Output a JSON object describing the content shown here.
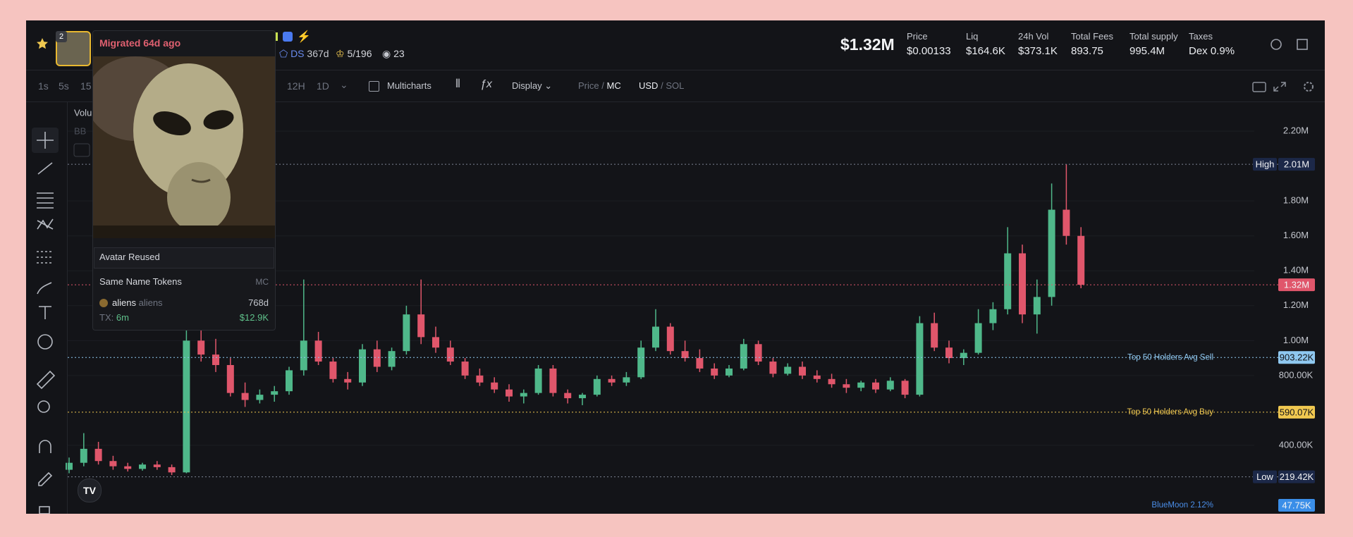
{
  "header": {
    "price_mc": "$1.32M",
    "badge_count": "2",
    "ds": "DS",
    "age": "367d",
    "holders": "5/196",
    "views": "23",
    "stats": [
      {
        "label": "Price",
        "value": "$0.00133"
      },
      {
        "label": "Liq",
        "value": "$164.6K"
      },
      {
        "label": "24h Vol",
        "value": "$373.1K"
      },
      {
        "label": "Total Fees",
        "value": "893.75"
      },
      {
        "label": "Total supply",
        "value": "995.4M"
      },
      {
        "label": "Taxes",
        "value": "Dex 0.9%"
      }
    ]
  },
  "toolbar": {
    "timeframes": [
      "1s",
      "5s",
      "15",
      "12H",
      "1D"
    ],
    "multicharts": "Multicharts",
    "display": "Display",
    "price": "Price",
    "mc": "MC",
    "usd": "USD",
    "sol": "SOL",
    "separator": "/"
  },
  "popup": {
    "status": "Migrated 64d ago",
    "avatar_note": "Avatar Reused",
    "same_name_title": "Same Name Tokens",
    "mc_header": "MC",
    "token": {
      "name": "aliens",
      "symbol": "aliens",
      "age": "768d",
      "tx_label": "TX:",
      "tx": "6m",
      "mc": "$12.9K"
    }
  },
  "chart_data": {
    "type": "candlestick",
    "indicators": [
      "Volu",
      "BB"
    ],
    "open": [
      260000,
      300000,
      380000,
      310000,
      280000,
      265000,
      290000,
      275000,
      245000,
      1000000,
      920000,
      860000,
      700000,
      660000,
      690000,
      710000,
      830000,
      1000000,
      880000,
      780000,
      760000,
      950000,
      850000,
      940000,
      1150000,
      1020000,
      960000,
      880000,
      800000,
      760000,
      720000,
      680000,
      700000,
      840000,
      700000,
      670000,
      690000,
      780000,
      760000,
      790000,
      960000,
      1080000,
      940000,
      900000,
      840000,
      800000,
      840000,
      980000,
      880000,
      810000,
      850000,
      800000,
      780000,
      750000,
      730000,
      760000,
      720000,
      770000,
      690000,
      1100000,
      960000,
      900000,
      930000,
      1100000,
      1180000,
      1500000,
      1150000,
      1250000,
      1750000,
      1600000
    ],
    "high": [
      330000,
      470000,
      420000,
      340000,
      300000,
      300000,
      310000,
      290000,
      1100000,
      1200000,
      1010000,
      900000,
      760000,
      720000,
      740000,
      850000,
      1350000,
      1050000,
      900000,
      820000,
      980000,
      1000000,
      960000,
      1200000,
      1350000,
      1080000,
      1000000,
      900000,
      840000,
      790000,
      750000,
      720000,
      860000,
      860000,
      720000,
      700000,
      800000,
      800000,
      820000,
      1000000,
      1180000,
      1100000,
      1000000,
      950000,
      870000,
      860000,
      1010000,
      1000000,
      900000,
      870000,
      880000,
      830000,
      810000,
      780000,
      770000,
      780000,
      790000,
      780000,
      1140000,
      1160000,
      1000000,
      950000,
      1180000,
      1220000,
      1650000,
      1550000,
      1350000,
      1900000,
      2010000,
      1650000
    ],
    "low": [
      240000,
      280000,
      290000,
      260000,
      250000,
      255000,
      260000,
      230000,
      240000,
      880000,
      820000,
      680000,
      620000,
      640000,
      650000,
      690000,
      800000,
      860000,
      760000,
      720000,
      740000,
      820000,
      830000,
      920000,
      980000,
      930000,
      860000,
      780000,
      740000,
      700000,
      650000,
      640000,
      690000,
      680000,
      640000,
      630000,
      680000,
      740000,
      740000,
      780000,
      940000,
      920000,
      880000,
      820000,
      780000,
      790000,
      830000,
      860000,
      790000,
      800000,
      780000,
      760000,
      730000,
      700000,
      710000,
      700000,
      710000,
      670000,
      680000,
      940000,
      870000,
      860000,
      920000,
      1060000,
      1150000,
      1100000,
      1040000,
      1200000,
      1550000,
      1300000
    ],
    "close": [
      300000,
      380000,
      310000,
      280000,
      265000,
      290000,
      275000,
      245000,
      1000000,
      920000,
      860000,
      700000,
      660000,
      690000,
      710000,
      830000,
      1000000,
      880000,
      780000,
      760000,
      950000,
      850000,
      940000,
      1150000,
      1020000,
      960000,
      880000,
      800000,
      760000,
      720000,
      680000,
      700000,
      840000,
      700000,
      670000,
      690000,
      780000,
      760000,
      790000,
      960000,
      1080000,
      940000,
      900000,
      840000,
      800000,
      840000,
      980000,
      880000,
      810000,
      850000,
      800000,
      780000,
      750000,
      730000,
      760000,
      720000,
      770000,
      690000,
      1100000,
      960000,
      900000,
      930000,
      1100000,
      1180000,
      1500000,
      1150000,
      1250000,
      1750000,
      1600000,
      1320000
    ],
    "up_color": "#4fb88a",
    "down_color": "#e0566b",
    "ylim": [
      0,
      2370000
    ],
    "yticks": [
      {
        "value": 400000,
        "label": "400.00K"
      },
      {
        "value": 800000,
        "label": "800.00K"
      },
      {
        "value": 1000000,
        "label": "1.00M"
      },
      {
        "value": 1200000,
        "label": "1.20M"
      },
      {
        "value": 1400000,
        "label": "1.40M"
      },
      {
        "value": 1600000,
        "label": "1.60M"
      },
      {
        "value": 1800000,
        "label": "1.80M"
      },
      {
        "value": 2200000,
        "label": "2.20M"
      }
    ],
    "grid": true,
    "markers": [
      {
        "name": "High",
        "value": 2010000,
        "value_label": "2.01M",
        "color": "#7d8494"
      },
      {
        "value": 1320000,
        "value_label": "1.32M",
        "color": "#e0566b"
      },
      {
        "name": "Top 50 Holders Avg Sell",
        "value": 903220,
        "value_label": "903.22K",
        "color": "#8fc8f0"
      },
      {
        "name": "Top 50 Holders Avg Buy",
        "value": 590070,
        "value_label": "590.07K",
        "color": "#f0c850"
      },
      {
        "name": "Low",
        "value": 219420,
        "value_label": "219.42K",
        "color": "#7d8494"
      }
    ],
    "volume_marker": {
      "name": "BlueMoon 2.12%",
      "value_label": "47.75K"
    }
  }
}
